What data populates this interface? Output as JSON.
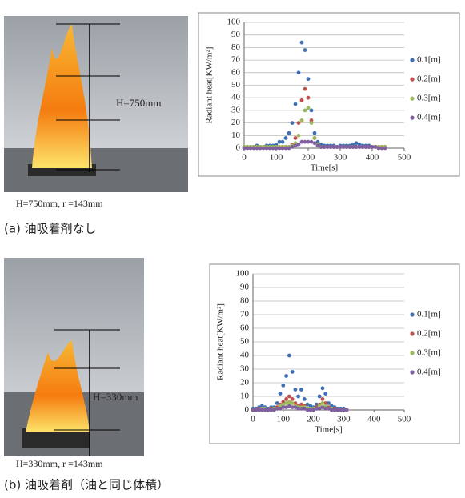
{
  "figure": {
    "panels": [
      {
        "photo_label": "H=750mm",
        "photo_caption": "H=750mm, r =143mm",
        "caption": "(a) 油吸着剤なし"
      },
      {
        "photo_label": "H=330mm",
        "photo_caption": "H=330mm, r =143mm",
        "caption": "(b) 油吸着剤（油と同じ体積）"
      }
    ]
  },
  "chart_data": [
    {
      "type": "scatter",
      "x_label": "Time[s]",
      "y_label": "Radiant heat[KW/m²]",
      "x": [
        0,
        10,
        20,
        30,
        40,
        50,
        60,
        70,
        80,
        90,
        100,
        110,
        120,
        130,
        140,
        150,
        160,
        170,
        180,
        190,
        200,
        210,
        220,
        230,
        240,
        250,
        260,
        270,
        280,
        290,
        300,
        310,
        320,
        330,
        340,
        350,
        360,
        370,
        380,
        390,
        400,
        410,
        420,
        430,
        440
      ],
      "series": [
        {
          "name": "0.1[m]",
          "color": "#3f6fb5",
          "values": [
            1,
            1,
            1,
            1,
            2,
            1,
            1,
            2,
            2,
            2,
            3,
            5,
            5,
            8,
            12,
            20,
            35,
            60,
            84,
            78,
            55,
            30,
            12,
            5,
            3,
            2,
            2,
            2,
            2,
            1,
            2,
            2,
            2,
            2,
            3,
            4,
            3,
            2,
            2,
            2,
            1,
            1,
            1,
            1,
            1
          ]
        },
        {
          "name": "0.2[m]",
          "color": "#c0504d",
          "values": [
            1,
            1,
            1,
            1,
            1,
            1,
            1,
            1,
            1,
            1,
            1,
            1,
            1,
            1,
            1,
            3,
            8,
            20,
            38,
            47,
            40,
            22,
            8,
            3,
            1,
            1,
            1,
            1,
            1,
            1,
            1,
            1,
            1,
            1,
            1,
            1,
            1,
            1,
            1,
            1,
            1,
            1,
            1,
            1,
            1
          ]
        },
        {
          "name": "0.3[m]",
          "color": "#9bbb59",
          "values": [
            1,
            1,
            1,
            1,
            1,
            1,
            1,
            1,
            1,
            1,
            1,
            1,
            1,
            1,
            1,
            2,
            4,
            10,
            22,
            30,
            32,
            20,
            8,
            3,
            1,
            1,
            1,
            1,
            1,
            1,
            1,
            1,
            1,
            1,
            1,
            1,
            1,
            1,
            1,
            1,
            1,
            1,
            1,
            1,
            1
          ]
        },
        {
          "name": "0.4[m]",
          "color": "#7f5fa0",
          "values": [
            0,
            0,
            0,
            0,
            0,
            0,
            0,
            0,
            0,
            0,
            0,
            0,
            0,
            0,
            0,
            1,
            2,
            3,
            5,
            5,
            5,
            5,
            4,
            2,
            1,
            1,
            1,
            1,
            1,
            1,
            1,
            1,
            1,
            1,
            1,
            1,
            1,
            1,
            1,
            1,
            1,
            1,
            0,
            0,
            0
          ]
        }
      ],
      "xlim": [
        0,
        500
      ],
      "xticks": [
        0,
        100,
        200,
        300,
        400,
        500
      ],
      "ylim": [
        0,
        100
      ],
      "yticks": [
        0,
        10,
        20,
        30,
        40,
        50,
        60,
        70,
        80,
        90,
        100
      ],
      "grid": true,
      "legend": "right"
    },
    {
      "type": "scatter",
      "x_label": "Time[s]",
      "y_label": "Radiant heat[KW/m²]",
      "x": [
        0,
        10,
        20,
        30,
        40,
        50,
        60,
        70,
        80,
        90,
        100,
        110,
        120,
        130,
        140,
        150,
        160,
        170,
        180,
        190,
        200,
        210,
        220,
        230,
        240,
        250,
        260,
        270,
        280,
        290,
        300,
        310
      ],
      "series": [
        {
          "name": "0.1[m]",
          "color": "#3f6fb5",
          "values": [
            1,
            1,
            2,
            3,
            2,
            1,
            2,
            2,
            5,
            12,
            18,
            25,
            40,
            28,
            15,
            10,
            15,
            8,
            4,
            3,
            2,
            4,
            10,
            16,
            12,
            5,
            3,
            2,
            1,
            1,
            1,
            0
          ]
        },
        {
          "name": "0.2[m]",
          "color": "#c0504d",
          "values": [
            0,
            0,
            1,
            1,
            1,
            0,
            1,
            1,
            2,
            4,
            6,
            8,
            10,
            8,
            5,
            3,
            4,
            3,
            1,
            1,
            1,
            2,
            4,
            8,
            5,
            2,
            1,
            1,
            0,
            0,
            0,
            0
          ]
        },
        {
          "name": "0.3[m]",
          "color": "#9bbb59",
          "values": [
            0,
            0,
            0,
            1,
            1,
            0,
            0,
            1,
            1,
            3,
            4,
            5,
            6,
            5,
            3,
            2,
            2,
            2,
            1,
            1,
            1,
            1,
            3,
            5,
            3,
            1,
            1,
            0,
            0,
            0,
            0,
            0
          ]
        },
        {
          "name": "0.4[m]",
          "color": "#7f5fa0",
          "values": [
            0,
            0,
            0,
            0,
            0,
            0,
            0,
            0,
            1,
            1,
            2,
            2,
            3,
            2,
            2,
            1,
            1,
            1,
            0,
            0,
            0,
            1,
            1,
            2,
            1,
            1,
            0,
            0,
            0,
            0,
            0,
            0
          ]
        }
      ],
      "xlim": [
        0,
        500
      ],
      "xticks": [
        0,
        100,
        200,
        300,
        400,
        500
      ],
      "ylim": [
        0,
        100
      ],
      "yticks": [
        0,
        10,
        20,
        30,
        40,
        50,
        60,
        70,
        80,
        90,
        100
      ],
      "grid": true,
      "legend": "right"
    }
  ]
}
